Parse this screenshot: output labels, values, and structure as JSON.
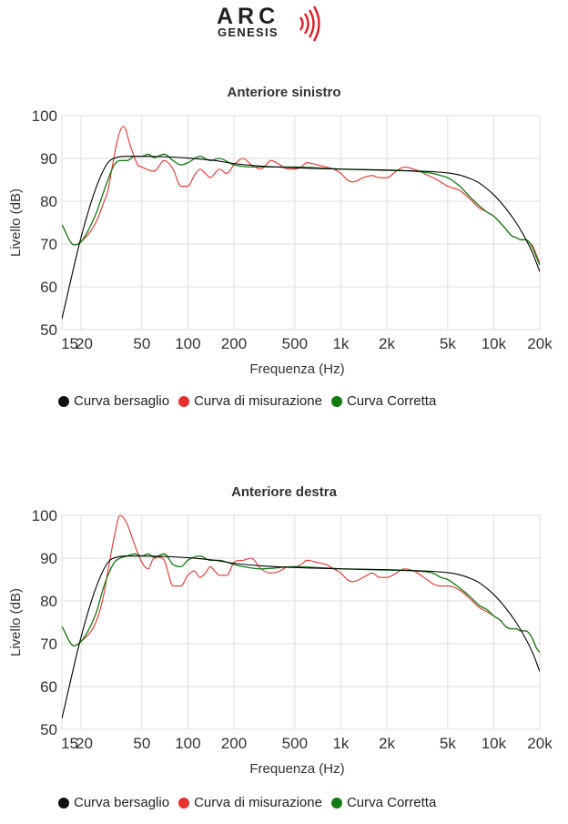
{
  "logo": {
    "text": "ARC",
    "subtext": "GENESIS",
    "color": "#e31c24"
  },
  "chart_data": [
    {
      "type": "line",
      "title": "Anteriore sinistro",
      "xlabel": "Frequenza (Hz)",
      "ylabel": "Livello (dB)",
      "x_scale": "log",
      "xlim": [
        15,
        20000
      ],
      "ylim": [
        50,
        100
      ],
      "grid": true,
      "legend_position": "bottom",
      "x_ticks": [
        15,
        20,
        50,
        100,
        200,
        500,
        1000,
        2000,
        5000,
        10000,
        20000
      ],
      "x_tick_labels": [
        "15",
        "20",
        "50",
        "100",
        "200",
        "500",
        "1k",
        "2k",
        "5k",
        "10k",
        "20k"
      ],
      "y_ticks": [
        50,
        60,
        70,
        80,
        90,
        100
      ],
      "series": [
        {
          "name": "Curva bersaglio",
          "color": "#000000",
          "x": [
            15,
            20,
            25,
            30,
            35,
            40,
            50,
            70,
            100,
            150,
            200,
            300,
            500,
            1000,
            2000,
            3000,
            4000,
            5000,
            6000,
            7000,
            8000,
            10000,
            12000,
            14000,
            16000,
            18000,
            20000
          ],
          "y": [
            52.5,
            71.5,
            83,
            89,
            90.3,
            90.5,
            90.5,
            90.4,
            90.1,
            89.5,
            88.8,
            88.2,
            87.8,
            87.5,
            87.3,
            87.1,
            86.9,
            86.6,
            86.1,
            85.3,
            84.3,
            81.5,
            78.3,
            75,
            71.5,
            67.8,
            63.5
          ]
        },
        {
          "name": "Curva di misurazione",
          "color": "#e8312f",
          "x": [
            15,
            18,
            20,
            25,
            28,
            30,
            32,
            35,
            38,
            42,
            47,
            50,
            60,
            70,
            80,
            90,
            100,
            110,
            120,
            130,
            140,
            150,
            160,
            180,
            200,
            230,
            260,
            300,
            350,
            400,
            450,
            500,
            550,
            600,
            700,
            800,
            900,
            1000,
            1100,
            1200,
            1400,
            1600,
            1800,
            2000,
            2300,
            2600,
            3000,
            3500,
            4000,
            4500,
            5000,
            6000,
            7000,
            8000,
            9000,
            10000,
            11000,
            12000,
            13000,
            14000,
            15000,
            16000,
            17000,
            18000,
            19000,
            20000
          ],
          "y": [
            74.5,
            69.8,
            70.5,
            75,
            79.5,
            82.5,
            88,
            95,
            97.5,
            93,
            88.5,
            88,
            87,
            89.5,
            87.5,
            83.5,
            83.5,
            86,
            87.5,
            86.5,
            85.5,
            86.5,
            87.5,
            86.5,
            88.5,
            90,
            88.5,
            87.5,
            89.5,
            88.5,
            87.5,
            87.5,
            88,
            89,
            88.5,
            88,
            87.5,
            86.5,
            85,
            84.5,
            85.5,
            86,
            85.5,
            85.5,
            87,
            88,
            87.5,
            86.5,
            85.5,
            84.5,
            83.5,
            82.5,
            80.5,
            78.5,
            77.5,
            76.5,
            75,
            73.5,
            72,
            71.5,
            71,
            71,
            70.5,
            69.5,
            67.5,
            65.5
          ]
        },
        {
          "name": "Curva Corretta",
          "color": "#127a12",
          "x": [
            15,
            18,
            20,
            25,
            28,
            30,
            33,
            36,
            40,
            45,
            50,
            55,
            60,
            70,
            80,
            90,
            100,
            120,
            140,
            160,
            200,
            300,
            500,
            1000,
            2000,
            3000,
            4000,
            4500,
            5000,
            6000,
            7000,
            8000,
            9000,
            10000,
            11000,
            12000,
            13000,
            14000,
            15000,
            16000,
            17000,
            18000,
            19000,
            20000
          ],
          "y": [
            74.5,
            69.8,
            70.5,
            77,
            82,
            85,
            88.5,
            89.5,
            89.5,
            90.5,
            90.5,
            91,
            90.2,
            91,
            89.5,
            88.5,
            89,
            90.5,
            89.5,
            90,
            88.5,
            88,
            88,
            87.5,
            87.2,
            87,
            86.5,
            86,
            85.5,
            83.5,
            81,
            79,
            77.5,
            76.5,
            75,
            73.5,
            72,
            71.5,
            71,
            71,
            70.5,
            69,
            67,
            65
          ]
        }
      ]
    },
    {
      "type": "line",
      "title": "Anteriore destra",
      "xlabel": "Frequenza (Hz)",
      "ylabel": "Livello (dB)",
      "x_scale": "log",
      "xlim": [
        15,
        20000
      ],
      "ylim": [
        50,
        100
      ],
      "grid": true,
      "legend_position": "bottom",
      "x_ticks": [
        15,
        20,
        50,
        100,
        200,
        500,
        1000,
        2000,
        5000,
        10000,
        20000
      ],
      "x_tick_labels": [
        "15",
        "20",
        "50",
        "100",
        "200",
        "500",
        "1k",
        "2k",
        "5k",
        "10k",
        "20k"
      ],
      "y_ticks": [
        50,
        60,
        70,
        80,
        90,
        100
      ],
      "series": [
        {
          "name": "Curva bersaglio",
          "color": "#000000",
          "x": [
            15,
            20,
            25,
            30,
            35,
            40,
            50,
            70,
            100,
            150,
            200,
            300,
            500,
            1000,
            2000,
            3000,
            4000,
            5000,
            6000,
            7000,
            8000,
            10000,
            12000,
            14000,
            16000,
            18000,
            20000
          ],
          "y": [
            52.5,
            71.5,
            83,
            89,
            90.3,
            90.5,
            90.5,
            90.4,
            90.1,
            89.5,
            88.8,
            88.2,
            87.8,
            87.5,
            87.3,
            87.1,
            86.9,
            86.6,
            86.1,
            85.3,
            84.3,
            81.5,
            78.3,
            75,
            71.5,
            67.8,
            63.5
          ]
        },
        {
          "name": "Curva di misurazione",
          "color": "#e8312f",
          "x": [
            15,
            18,
            20,
            25,
            28,
            30,
            33,
            36,
            40,
            45,
            50,
            55,
            60,
            70,
            80,
            90,
            100,
            110,
            120,
            130,
            140,
            150,
            160,
            180,
            200,
            230,
            260,
            300,
            350,
            400,
            450,
            500,
            550,
            600,
            700,
            800,
            900,
            1000,
            1100,
            1200,
            1400,
            1600,
            1800,
            2000,
            2300,
            2600,
            3000,
            3500,
            4000,
            4500,
            5000,
            6000,
            7000,
            8000,
            9000,
            10000,
            11000,
            12000,
            13000,
            14000,
            15000,
            16000,
            17000,
            18000,
            19000,
            20000
          ],
          "y": [
            74,
            69.5,
            70.5,
            75,
            81,
            87,
            95,
            100,
            98,
            93,
            89,
            87.5,
            90,
            89.5,
            83.5,
            83.5,
            86,
            87,
            85.5,
            86.5,
            88,
            87,
            86,
            86,
            89,
            89.5,
            90,
            87.5,
            86.5,
            87,
            88,
            88,
            88.5,
            89.5,
            89,
            88.5,
            87.5,
            86.5,
            85,
            84.5,
            85.5,
            86.5,
            85.5,
            85.5,
            86.5,
            87.5,
            87,
            85.5,
            84,
            83.5,
            83.5,
            82.5,
            80.5,
            78.5,
            77.5,
            76.5,
            75.5,
            74,
            73.5,
            73.5,
            73,
            73,
            72.5,
            71,
            69,
            68
          ]
        },
        {
          "name": "Curva Corretta",
          "color": "#127a12",
          "x": [
            15,
            18,
            20,
            25,
            28,
            30,
            33,
            36,
            40,
            45,
            50,
            55,
            60,
            70,
            80,
            90,
            100,
            120,
            140,
            160,
            200,
            300,
            500,
            1000,
            2000,
            3000,
            4000,
            4500,
            5000,
            6000,
            7000,
            8000,
            9000,
            10000,
            11000,
            12000,
            13000,
            14000,
            15000,
            16000,
            17000,
            18000,
            19000,
            20000
          ],
          "y": [
            74,
            69.5,
            70.5,
            77,
            83,
            86,
            89,
            90,
            90.5,
            91,
            90.5,
            91,
            90.2,
            91,
            88.5,
            88,
            89.5,
            90.5,
            89.5,
            89.5,
            88.5,
            87.5,
            88,
            87.5,
            87.2,
            87,
            86.5,
            85.5,
            85,
            83,
            81,
            79,
            78,
            76.5,
            75.5,
            74,
            73.5,
            73.5,
            73,
            73,
            72.5,
            71,
            69,
            68
          ]
        }
      ]
    }
  ]
}
